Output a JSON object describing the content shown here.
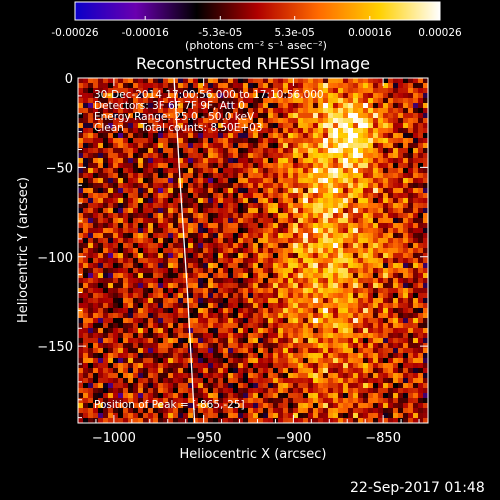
{
  "colorbar": {
    "ticks": [
      "-0.00026",
      "-0.00016",
      "-5.3e-05",
      "5.3e-05",
      "0.00016",
      "0.00026"
    ],
    "tick_values": [
      -0.00026,
      -0.00016,
      -5.3e-05,
      5.3e-05,
      0.00016,
      0.00026
    ],
    "range": [
      -0.00026,
      0.00026
    ],
    "colors": [
      "#0a00c8",
      "#6a00b0",
      "#000000",
      "#b00000",
      "#ff6a00",
      "#ffd000",
      "#ffffff"
    ]
  },
  "chart_data": {
    "type": "heatmap",
    "title": "Reconstructed RHESSI Image",
    "units_label": "(photons cm⁻² s⁻¹ asec⁻²)",
    "xlabel": "Heliocentric X (arcsec)",
    "ylabel": "Heliocentric Y (arcsec)",
    "xlim": [
      -1020,
      -825
    ],
    "ylim": [
      -193,
      0
    ],
    "x_ticks": [
      -1000,
      -950,
      -900,
      -850
    ],
    "x_tick_labels": [
      "−1000",
      "−950",
      "−900",
      "−850"
    ],
    "y_ticks": [
      0,
      -50,
      -100,
      -150
    ],
    "y_tick_labels": [
      "0",
      "−50",
      "−100",
      "−150"
    ],
    "annotations": [
      "30-Dec-2014 17:00:56.000 to 17:10:56.000",
      "Detectors: 3F 6F 7F 9F, Att 0",
      "Energy Range: 25.0 - 50.0 keV",
      "Clean     Total counts: 8.50E+03"
    ],
    "peak_label": "Position of Peak = [-865,-25]",
    "limb": [
      [
        -966.5,
        0
      ],
      [
        -963,
        -60
      ],
      [
        -959,
        -120
      ],
      [
        -955,
        -193
      ]
    ],
    "bright_regions": [
      {
        "x": -880,
        "y": -85,
        "sx": 22,
        "sy": 70
      },
      {
        "x": -868,
        "y": -30,
        "sx": 10,
        "sy": 15
      }
    ]
  },
  "timestamp": "22-Sep-2017 01:48"
}
